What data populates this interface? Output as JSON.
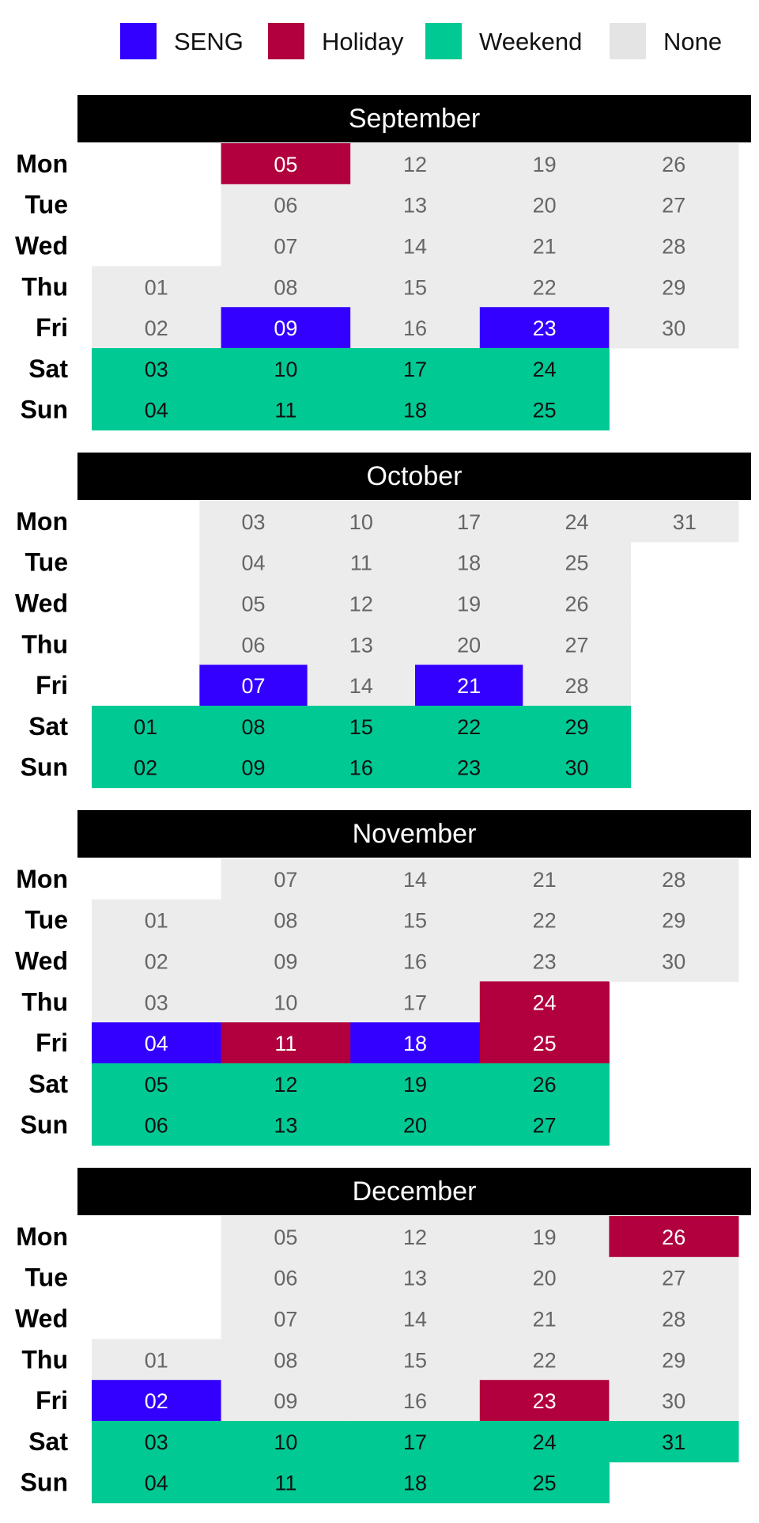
{
  "chart_data": {
    "type": "heatmap",
    "legend": {
      "placement": "top",
      "entries": [
        {
          "key": "seng",
          "label": "SENG",
          "color": "#3300ff"
        },
        {
          "key": "holiday",
          "label": "Holiday",
          "color": "#b1003d"
        },
        {
          "key": "weekend",
          "label": "Weekend",
          "color": "#00c994"
        },
        {
          "key": "none",
          "label": "None",
          "color": "#e4e4e4"
        }
      ]
    },
    "weekdays": [
      "Mon",
      "Tue",
      "Wed",
      "Thu",
      "Fri",
      "Sat",
      "Sun"
    ],
    "months": [
      {
        "name": "September",
        "weeks": [
          [
            null,
            null,
            null,
            {
              "day": "01",
              "cat": "none"
            },
            {
              "day": "02",
              "cat": "none"
            },
            {
              "day": "03",
              "cat": "weekend"
            },
            {
              "day": "04",
              "cat": "weekend"
            }
          ],
          [
            {
              "day": "05",
              "cat": "holiday"
            },
            {
              "day": "06",
              "cat": "none"
            },
            {
              "day": "07",
              "cat": "none"
            },
            {
              "day": "08",
              "cat": "none"
            },
            {
              "day": "09",
              "cat": "seng"
            },
            {
              "day": "10",
              "cat": "weekend"
            },
            {
              "day": "11",
              "cat": "weekend"
            }
          ],
          [
            {
              "day": "12",
              "cat": "none"
            },
            {
              "day": "13",
              "cat": "none"
            },
            {
              "day": "14",
              "cat": "none"
            },
            {
              "day": "15",
              "cat": "none"
            },
            {
              "day": "16",
              "cat": "none"
            },
            {
              "day": "17",
              "cat": "weekend"
            },
            {
              "day": "18",
              "cat": "weekend"
            }
          ],
          [
            {
              "day": "19",
              "cat": "none"
            },
            {
              "day": "20",
              "cat": "none"
            },
            {
              "day": "21",
              "cat": "none"
            },
            {
              "day": "22",
              "cat": "none"
            },
            {
              "day": "23",
              "cat": "seng"
            },
            {
              "day": "24",
              "cat": "weekend"
            },
            {
              "day": "25",
              "cat": "weekend"
            }
          ],
          [
            {
              "day": "26",
              "cat": "none"
            },
            {
              "day": "27",
              "cat": "none"
            },
            {
              "day": "28",
              "cat": "none"
            },
            {
              "day": "29",
              "cat": "none"
            },
            {
              "day": "30",
              "cat": "none"
            },
            null,
            null
          ]
        ]
      },
      {
        "name": "October",
        "weeks": [
          [
            null,
            null,
            null,
            null,
            null,
            {
              "day": "01",
              "cat": "weekend"
            },
            {
              "day": "02",
              "cat": "weekend"
            }
          ],
          [
            {
              "day": "03",
              "cat": "none"
            },
            {
              "day": "04",
              "cat": "none"
            },
            {
              "day": "05",
              "cat": "none"
            },
            {
              "day": "06",
              "cat": "none"
            },
            {
              "day": "07",
              "cat": "seng"
            },
            {
              "day": "08",
              "cat": "weekend"
            },
            {
              "day": "09",
              "cat": "weekend"
            }
          ],
          [
            {
              "day": "10",
              "cat": "none"
            },
            {
              "day": "11",
              "cat": "none"
            },
            {
              "day": "12",
              "cat": "none"
            },
            {
              "day": "13",
              "cat": "none"
            },
            {
              "day": "14",
              "cat": "none"
            },
            {
              "day": "15",
              "cat": "weekend"
            },
            {
              "day": "16",
              "cat": "weekend"
            }
          ],
          [
            {
              "day": "17",
              "cat": "none"
            },
            {
              "day": "18",
              "cat": "none"
            },
            {
              "day": "19",
              "cat": "none"
            },
            {
              "day": "20",
              "cat": "none"
            },
            {
              "day": "21",
              "cat": "seng"
            },
            {
              "day": "22",
              "cat": "weekend"
            },
            {
              "day": "23",
              "cat": "weekend"
            }
          ],
          [
            {
              "day": "24",
              "cat": "none"
            },
            {
              "day": "25",
              "cat": "none"
            },
            {
              "day": "26",
              "cat": "none"
            },
            {
              "day": "27",
              "cat": "none"
            },
            {
              "day": "28",
              "cat": "none"
            },
            {
              "day": "29",
              "cat": "weekend"
            },
            {
              "day": "30",
              "cat": "weekend"
            }
          ],
          [
            {
              "day": "31",
              "cat": "none"
            },
            null,
            null,
            null,
            null,
            null,
            null
          ]
        ]
      },
      {
        "name": "November",
        "weeks": [
          [
            null,
            {
              "day": "01",
              "cat": "none"
            },
            {
              "day": "02",
              "cat": "none"
            },
            {
              "day": "03",
              "cat": "none"
            },
            {
              "day": "04",
              "cat": "seng"
            },
            {
              "day": "05",
              "cat": "weekend"
            },
            {
              "day": "06",
              "cat": "weekend"
            }
          ],
          [
            {
              "day": "07",
              "cat": "none"
            },
            {
              "day": "08",
              "cat": "none"
            },
            {
              "day": "09",
              "cat": "none"
            },
            {
              "day": "10",
              "cat": "none"
            },
            {
              "day": "11",
              "cat": "holiday"
            },
            {
              "day": "12",
              "cat": "weekend"
            },
            {
              "day": "13",
              "cat": "weekend"
            }
          ],
          [
            {
              "day": "14",
              "cat": "none"
            },
            {
              "day": "15",
              "cat": "none"
            },
            {
              "day": "16",
              "cat": "none"
            },
            {
              "day": "17",
              "cat": "none"
            },
            {
              "day": "18",
              "cat": "seng"
            },
            {
              "day": "19",
              "cat": "weekend"
            },
            {
              "day": "20",
              "cat": "weekend"
            }
          ],
          [
            {
              "day": "21",
              "cat": "none"
            },
            {
              "day": "22",
              "cat": "none"
            },
            {
              "day": "23",
              "cat": "none"
            },
            {
              "day": "24",
              "cat": "holiday"
            },
            {
              "day": "25",
              "cat": "holiday"
            },
            {
              "day": "26",
              "cat": "weekend"
            },
            {
              "day": "27",
              "cat": "weekend"
            }
          ],
          [
            {
              "day": "28",
              "cat": "none"
            },
            {
              "day": "29",
              "cat": "none"
            },
            {
              "day": "30",
              "cat": "none"
            },
            null,
            null,
            null,
            null
          ]
        ]
      },
      {
        "name": "December",
        "weeks": [
          [
            null,
            null,
            null,
            {
              "day": "01",
              "cat": "none"
            },
            {
              "day": "02",
              "cat": "seng"
            },
            {
              "day": "03",
              "cat": "weekend"
            },
            {
              "day": "04",
              "cat": "weekend"
            }
          ],
          [
            {
              "day": "05",
              "cat": "none"
            },
            {
              "day": "06",
              "cat": "none"
            },
            {
              "day": "07",
              "cat": "none"
            },
            {
              "day": "08",
              "cat": "none"
            },
            {
              "day": "09",
              "cat": "none"
            },
            {
              "day": "10",
              "cat": "weekend"
            },
            {
              "day": "11",
              "cat": "weekend"
            }
          ],
          [
            {
              "day": "12",
              "cat": "none"
            },
            {
              "day": "13",
              "cat": "none"
            },
            {
              "day": "14",
              "cat": "none"
            },
            {
              "day": "15",
              "cat": "none"
            },
            {
              "day": "16",
              "cat": "none"
            },
            {
              "day": "17",
              "cat": "weekend"
            },
            {
              "day": "18",
              "cat": "weekend"
            }
          ],
          [
            {
              "day": "19",
              "cat": "none"
            },
            {
              "day": "20",
              "cat": "none"
            },
            {
              "day": "21",
              "cat": "none"
            },
            {
              "day": "22",
              "cat": "none"
            },
            {
              "day": "23",
              "cat": "holiday"
            },
            {
              "day": "24",
              "cat": "weekend"
            },
            {
              "day": "25",
              "cat": "weekend"
            }
          ],
          [
            {
              "day": "26",
              "cat": "holiday"
            },
            {
              "day": "27",
              "cat": "none"
            },
            {
              "day": "28",
              "cat": "none"
            },
            {
              "day": "29",
              "cat": "none"
            },
            {
              "day": "30",
              "cat": "none"
            },
            {
              "day": "31",
              "cat": "weekend"
            },
            null
          ]
        ]
      }
    ]
  }
}
